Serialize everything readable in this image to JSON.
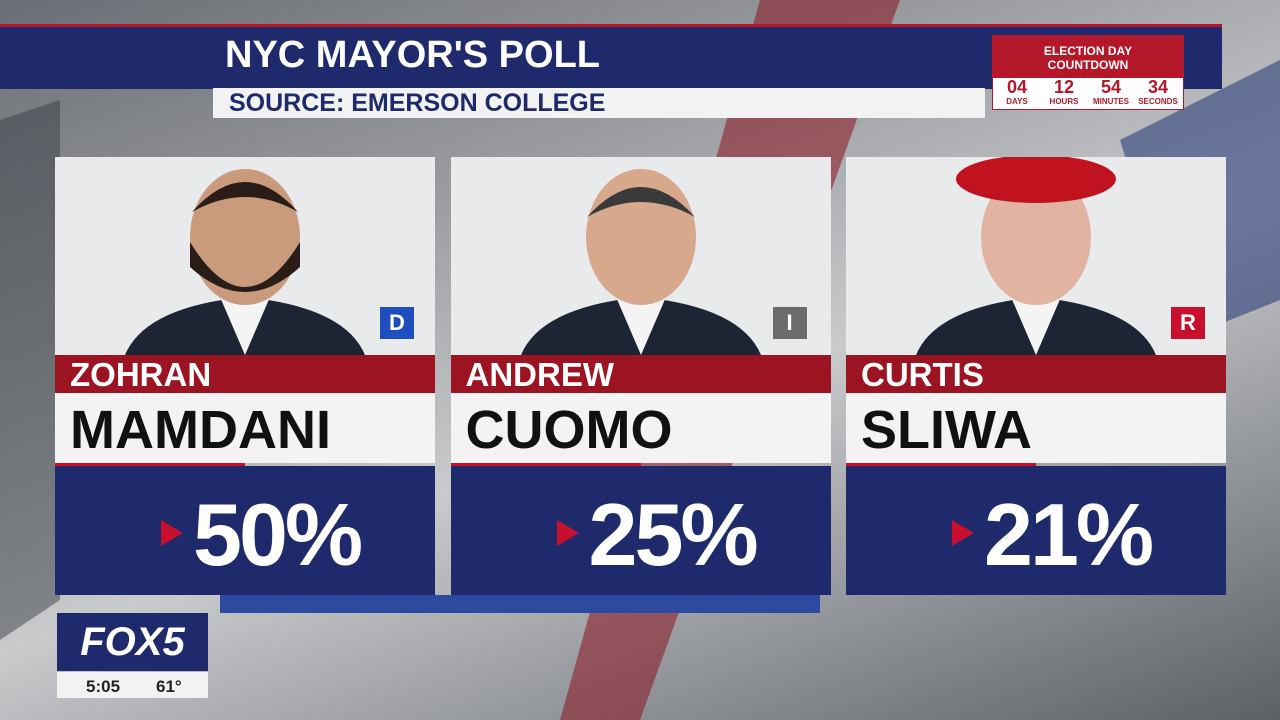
{
  "header": {
    "title": "NYC MAYOR'S POLL",
    "source": "SOURCE: EMERSON COLLEGE"
  },
  "countdown": {
    "title_lines": [
      "ELECTION DAY",
      "COUNTDOWN"
    ],
    "units": [
      {
        "value": "04",
        "label": "DAYS"
      },
      {
        "value": "12",
        "label": "HOURS"
      },
      {
        "value": "54",
        "label": "MINUTES"
      },
      {
        "value": "34",
        "label": "SECONDS"
      }
    ]
  },
  "candidates": [
    {
      "first": "ZOHRAN",
      "last": "MAMDANI",
      "party": "D",
      "percent": "50%"
    },
    {
      "first": "ANDREW",
      "last": "CUOMO",
      "party": "I",
      "percent": "25%"
    },
    {
      "first": "CURTIS",
      "last": "SLIWA",
      "party": "R",
      "percent": "21%"
    }
  ],
  "station": {
    "logo": "FOX5",
    "time": "5:05",
    "temp": "61°"
  }
}
